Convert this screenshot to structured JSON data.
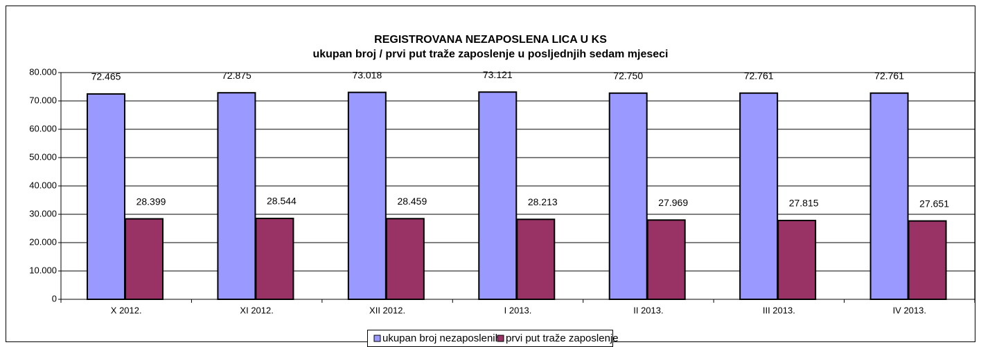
{
  "chart_data": {
    "type": "bar",
    "title": "REGISTROVANA NEZAPOSLENA LICA U KS",
    "subtitle": "ukupan broj / prvi put traže zaposlenje u posljednjih sedam mjeseci",
    "categories": [
      "X 2012.",
      "XI 2012.",
      "XII 2012.",
      "I 2013.",
      "II 2013.",
      "III 2013.",
      "IV 2013."
    ],
    "series": [
      {
        "name": "ukupan broj nezaposlenih",
        "color": "#9999ff",
        "values": [
          72465,
          72875,
          73018,
          73121,
          72750,
          72761,
          72761
        ],
        "value_labels": [
          "72.465",
          "72.875",
          "73.018",
          "73.121",
          "72.750",
          "72.761",
          "72.761"
        ]
      },
      {
        "name": "prvi put traže zaposlenje",
        "color": "#993366",
        "values": [
          28399,
          28544,
          28459,
          28213,
          27969,
          27815,
          27651
        ],
        "value_labels": [
          "28.399",
          "28.544",
          "28.459",
          "28.213",
          "27.969",
          "27.815",
          "27.651"
        ]
      }
    ],
    "ylim": [
      0,
      80000
    ],
    "yticks": [
      0,
      {
        "value": 10000,
        "label": "10.000"
      },
      {
        "value": 20000,
        "label": "20.000"
      },
      {
        "value": 30000,
        "label": "30.000"
      },
      {
        "value": 40000,
        "label": "40.000"
      },
      {
        "value": 50000,
        "label": "50.000"
      },
      {
        "value": 60000,
        "label": "60.000"
      },
      {
        "value": 70000,
        "label": "70.000"
      },
      {
        "value": 80000,
        "label": "80.000"
      }
    ],
    "grid": true,
    "legend": "bottom"
  }
}
